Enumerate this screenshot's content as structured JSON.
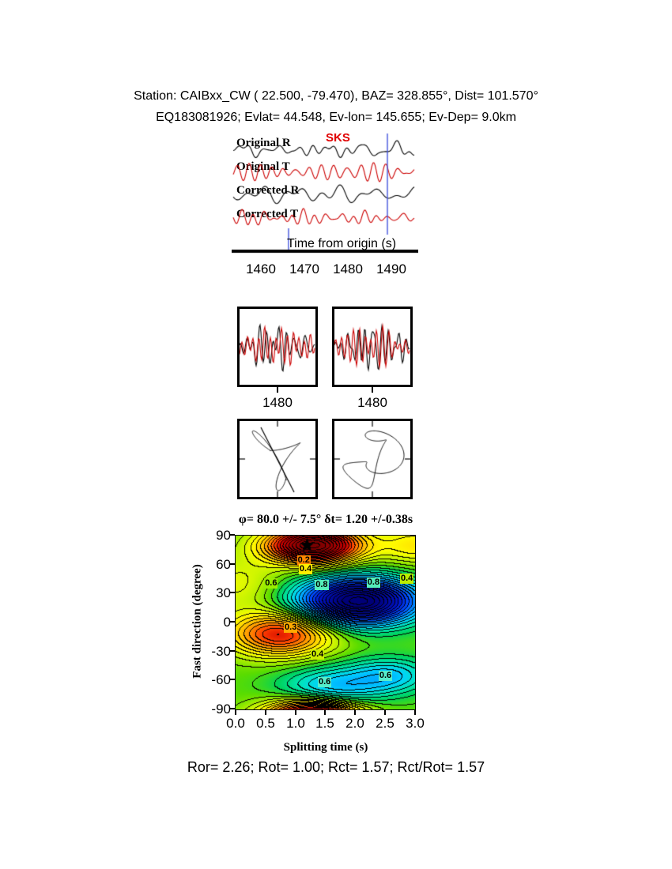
{
  "header": {
    "line1": "Station: CAIBxx_CW ( 22.500, -79.470), BAZ= 328.855°, Dist= 101.570°",
    "line2": "EQ183081926; Evlat= 44.548, Ev-lon= 145.655; Ev-Dep= 9.0km"
  },
  "footer": {
    "text": "Ror= 2.26; Rot= 1.00; Rct= 1.57; Rct/Rot= 1.57",
    "values": {
      "Ror": 2.26,
      "Rot": 1.0,
      "Rct": 1.57,
      "Rct_over_Rot": 1.57
    }
  },
  "chart_data": [
    {
      "type": "line",
      "id": "waveform-traces",
      "traces": [
        "Original R",
        "Original T",
        "Corrected R",
        "Corrected T"
      ],
      "trace_colors": [
        "#000000",
        "#cc0000",
        "#000000",
        "#cc0000"
      ],
      "phase_marker": {
        "label": "SKS",
        "time_s": 1489,
        "color": "#4455dd"
      },
      "window_start_s": 1466.5,
      "xlabel": "Time from origin (s)",
      "xticks": [
        1460,
        1470,
        1480,
        1490
      ],
      "xtick_labels": [
        "1460",
        "1470",
        "1480",
        "1490"
      ],
      "x_range": [
        1454,
        1496
      ]
    },
    {
      "type": "line",
      "id": "windowed-seismograms",
      "panels": [
        {
          "label": "1480"
        },
        {
          "label": "1480"
        }
      ],
      "colors": [
        "#000000",
        "#cc0000"
      ]
    },
    {
      "type": "scatter",
      "id": "particle-motion-hodograms",
      "panel_count": 2
    },
    {
      "type": "heatmap",
      "id": "splitting-misfit-contour",
      "title": "φ= 80.0 +/- 7.5° δt= 1.20 +/-0.38s",
      "xlabel": "Splitting time (s)",
      "ylabel": "Fast direction (degree)",
      "xlim": [
        0.0,
        3.0
      ],
      "ylim": [
        -90,
        90
      ],
      "xticks": [
        0.0,
        0.5,
        1.0,
        1.5,
        2.0,
        2.5,
        3.0
      ],
      "xtick_labels": [
        "0.0",
        "0.5",
        "1.0",
        "1.5",
        "2.0",
        "2.5",
        "3.0"
      ],
      "yticks": [
        90,
        60,
        30,
        0,
        -30,
        -60,
        -90
      ],
      "ytick_labels": [
        "90",
        "60",
        "30",
        "0",
        "-30",
        "-60",
        "-90"
      ],
      "grid": false,
      "best_fit": {
        "fast_direction_deg": 80.0,
        "fast_direction_err_deg": 7.5,
        "delay_time_s": 1.2,
        "delay_time_err_s": 0.38,
        "marker": "star"
      },
      "contour_interval": 0.05,
      "base_level": 0.58,
      "features": [
        {
          "kind": "global-minimum",
          "x": 1.3,
          "y": 80,
          "amp": -0.95,
          "sx": 0.55,
          "sy": 13
        },
        {
          "kind": "periodic-wrap-minimum",
          "x": 1.3,
          "y": -100,
          "amp": -0.95,
          "sx": 0.55,
          "sy": 13
        },
        {
          "kind": "maximum",
          "x": 2.05,
          "y": 22,
          "amp": 1.0,
          "sx": 0.7,
          "sy": 17
        },
        {
          "kind": "local-minimum",
          "x": 0.75,
          "y": -12,
          "amp": -0.55,
          "sx": 0.6,
          "sy": 16
        },
        {
          "kind": "local-maximum",
          "x": 1.6,
          "y": -68,
          "amp": 0.3,
          "sx": 0.6,
          "sy": 15
        },
        {
          "kind": "local-maximum",
          "x": 2.6,
          "y": -55,
          "amp": 0.26,
          "sx": 0.5,
          "sy": 13
        },
        {
          "kind": "local-minimum",
          "x": 3.05,
          "y": 80,
          "amp": -0.22,
          "sx": 0.45,
          "sy": 14
        },
        {
          "kind": "local-minimum",
          "x": 0.05,
          "y": 40,
          "amp": -0.15,
          "sx": 0.5,
          "sy": 20
        }
      ],
      "contour_labels": [
        {
          "text": "0.2",
          "x": 1.15,
          "y": 64,
          "bg": "#ff8800"
        },
        {
          "text": "0.4",
          "x": 1.18,
          "y": 55,
          "bg": "#ffee00"
        },
        {
          "text": "0.6",
          "x": 0.6,
          "y": 40,
          "bg": "#99ee00"
        },
        {
          "text": "0.8",
          "x": 1.45,
          "y": 38,
          "bg": "#55eebb"
        },
        {
          "text": "0.8",
          "x": 2.32,
          "y": 41,
          "bg": "#55eebb"
        },
        {
          "text": "0.4",
          "x": 2.88,
          "y": 45,
          "bg": "#bbee00"
        },
        {
          "text": "0.3",
          "x": 0.93,
          "y": -6,
          "bg": "#ffaa00"
        },
        {
          "text": "0.4",
          "x": 1.38,
          "y": -34,
          "bg": "#ccee00"
        },
        {
          "text": "0.6",
          "x": 1.5,
          "y": -63,
          "bg": "#55eecc"
        },
        {
          "text": "0.6",
          "x": 2.52,
          "y": -56,
          "bg": "#55eecc"
        }
      ]
    }
  ]
}
